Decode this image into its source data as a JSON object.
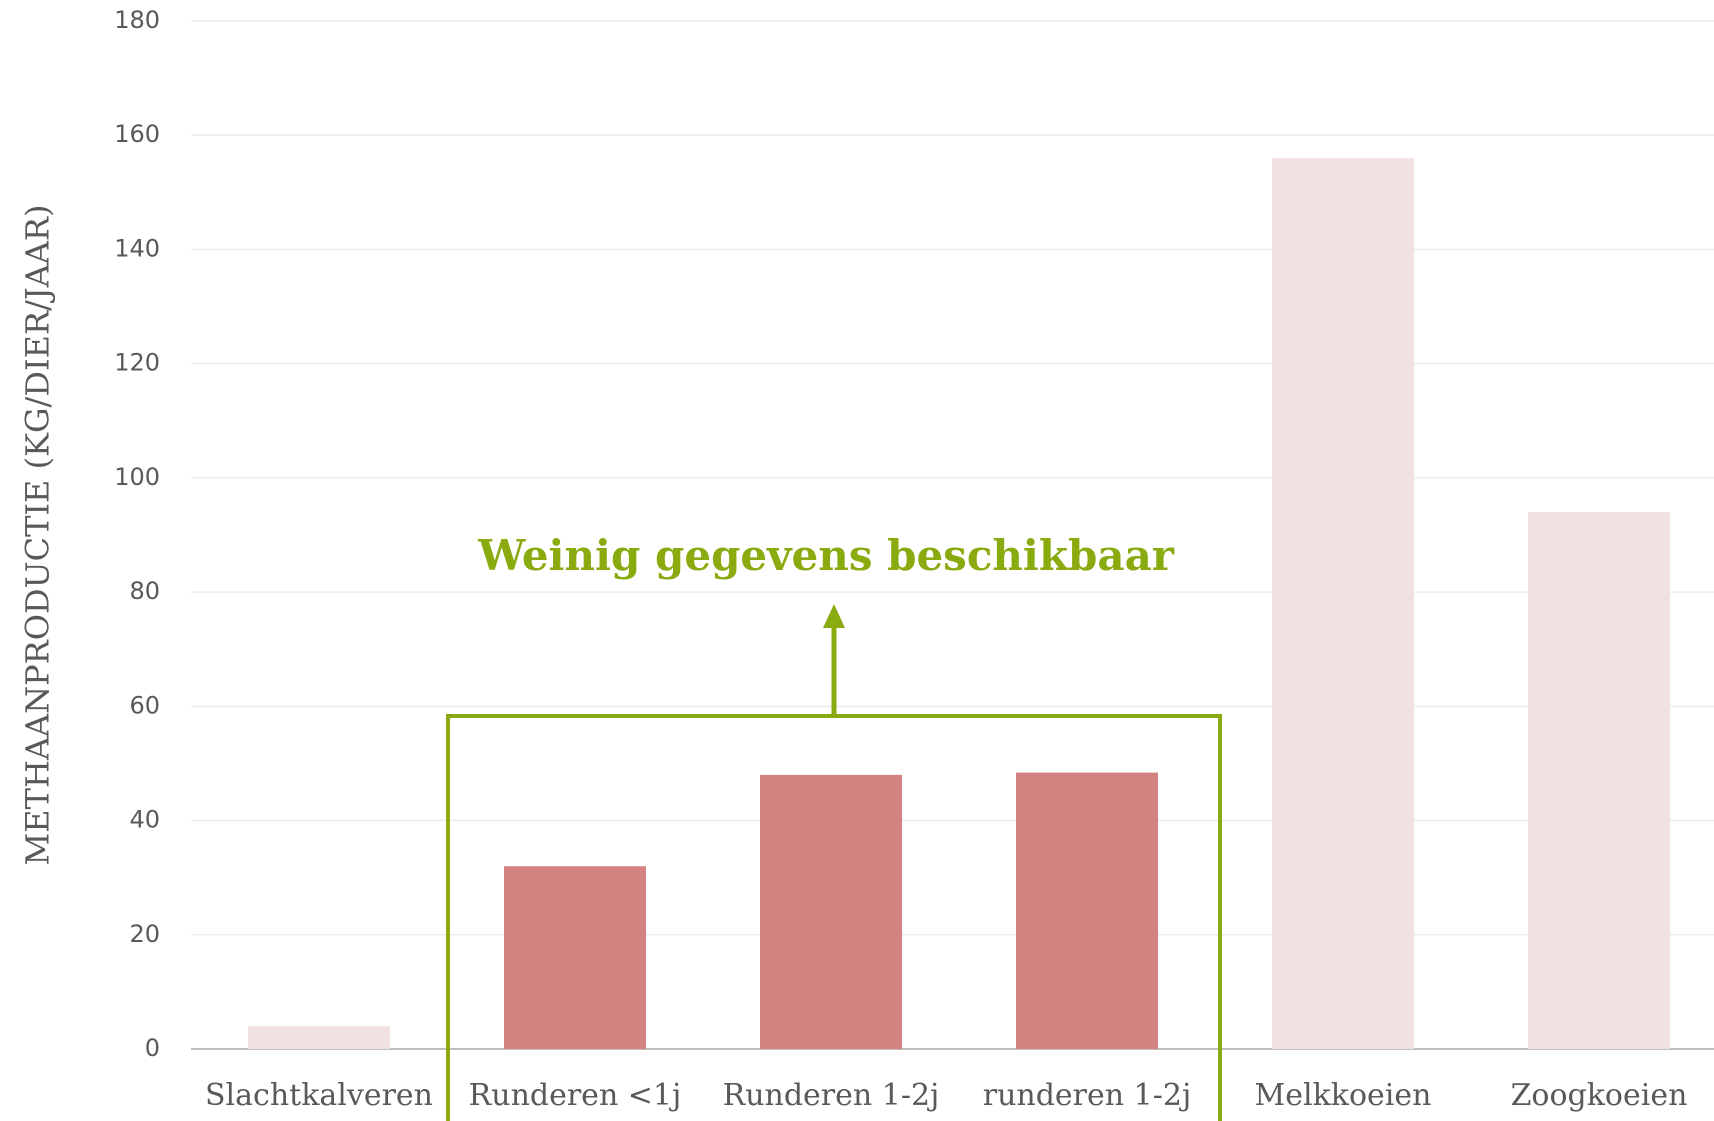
{
  "chart_data": {
    "type": "bar",
    "y_label": "METHAANPRODUCTIE (KG/DIER/JAAR)",
    "categories": [
      "Slachtkalveren",
      "Runderen <1j",
      "Runderen 1-2j",
      "runderen 1-2j",
      "Melkkoeien",
      "Zoogkoeien"
    ],
    "values": [
      4,
      32,
      48,
      48.4,
      156,
      94
    ],
    "colors": [
      "#f2e1e1",
      "#d48181",
      "#d48181",
      "#d48181",
      "#f2e1e1",
      "#f2e1e1"
    ],
    "ylim": [
      0,
      180
    ],
    "yticks": [
      0,
      20,
      40,
      60,
      80,
      100,
      120,
      140,
      160,
      180
    ],
    "grid": true,
    "annotation": "Weinig gegevens beschikbaar",
    "annotation_color": "#8aab10"
  }
}
